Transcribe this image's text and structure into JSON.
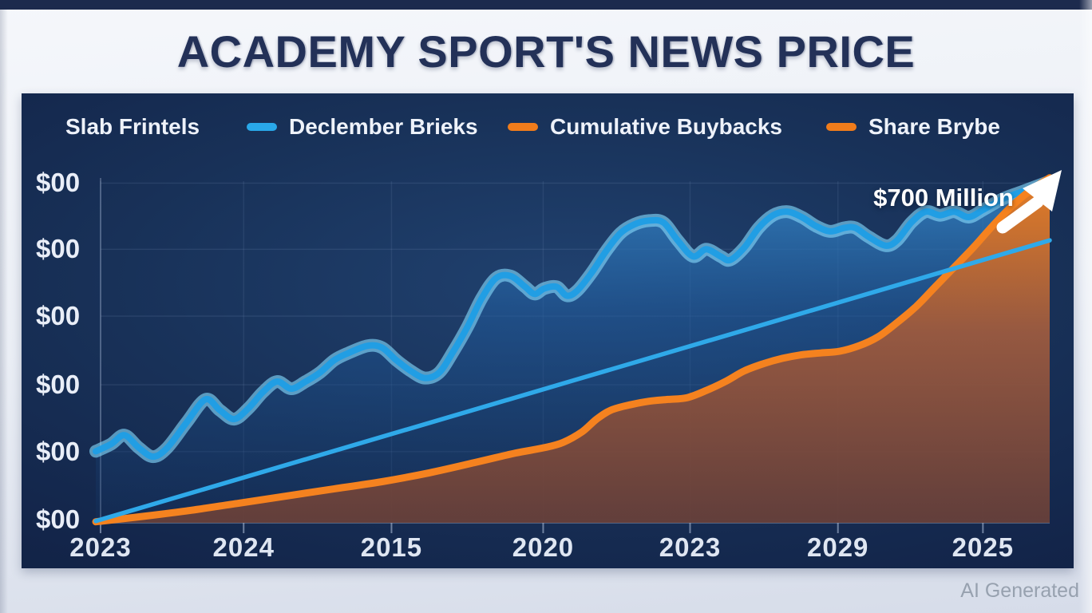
{
  "header": {
    "title": "ACADEMY SPORT'S NEWS PRICE"
  },
  "legend": {
    "items": [
      {
        "label": "Slab Frintels",
        "swatch": null
      },
      {
        "label": "Declember Brieks",
        "swatch": "#29a8e9"
      },
      {
        "label": "Cumulative Buybacks",
        "swatch": "#f07c1b"
      },
      {
        "label": "Share Brybe",
        "swatch": "#f07c1b"
      }
    ]
  },
  "annotation": {
    "text": "$700 Million"
  },
  "watermark": "AI Generated",
  "chart_data": {
    "type": "area",
    "title": "ACADEMY SPORT'S NEWS PRICE",
    "xlabel": "",
    "ylabel": "",
    "grid": true,
    "legend_position": "top",
    "xlim_pct": [
      0,
      100
    ],
    "ylim_pct": [
      0,
      100
    ],
    "x_ticks": [
      {
        "pos": 0.5,
        "label": "2023"
      },
      {
        "pos": 15.5,
        "label": "2024"
      },
      {
        "pos": 31.0,
        "label": "2015"
      },
      {
        "pos": 46.9,
        "label": "2020"
      },
      {
        "pos": 62.3,
        "label": "2023"
      },
      {
        "pos": 77.8,
        "label": "2029"
      },
      {
        "pos": 93.0,
        "label": "2025"
      }
    ],
    "y_ticks": [
      {
        "pos": 95.0,
        "label": "$00"
      },
      {
        "pos": 76.5,
        "label": "$00"
      },
      {
        "pos": 57.8,
        "label": "$00"
      },
      {
        "pos": 38.6,
        "label": "$00"
      },
      {
        "pos": 19.9,
        "label": "$00"
      },
      {
        "pos": 1.0,
        "label": "$00"
      }
    ],
    "annotation": {
      "text": "$700 Million",
      "x": 78,
      "y": 91
    },
    "series": [
      {
        "name": "Declember Brieks",
        "color": "#219ee4",
        "halo": "#7fd2f6",
        "width": 8,
        "fill": true,
        "points": [
          [
            0,
            20
          ],
          [
            1.6,
            22
          ],
          [
            3,
            24.5
          ],
          [
            4.5,
            21
          ],
          [
            6,
            18.5
          ],
          [
            7.5,
            21
          ],
          [
            9.5,
            28
          ],
          [
            11.5,
            34.5
          ],
          [
            13,
            31.5
          ],
          [
            14.5,
            29
          ],
          [
            16,
            32
          ],
          [
            17.5,
            36.5
          ],
          [
            19,
            39.5
          ],
          [
            20.5,
            37.5
          ],
          [
            22,
            39.5
          ],
          [
            23.5,
            42
          ],
          [
            25,
            45.5
          ],
          [
            26.5,
            47.5
          ],
          [
            28.5,
            49.5
          ],
          [
            30,
            49
          ],
          [
            31.5,
            45.5
          ],
          [
            33,
            42.5
          ],
          [
            34.5,
            40.5
          ],
          [
            36,
            42
          ],
          [
            37.5,
            48
          ],
          [
            39,
            55
          ],
          [
            40.5,
            63
          ],
          [
            42,
            68.5
          ],
          [
            43.5,
            69
          ],
          [
            45,
            66
          ],
          [
            46,
            64
          ],
          [
            47,
            65.5
          ],
          [
            48.3,
            66
          ],
          [
            49.4,
            63.5
          ],
          [
            50.5,
            65
          ],
          [
            52,
            70
          ],
          [
            53.5,
            76
          ],
          [
            55,
            81
          ],
          [
            56.5,
            83.5
          ],
          [
            58,
            84.5
          ],
          [
            59.5,
            84
          ],
          [
            61,
            79
          ],
          [
            62.6,
            74.5
          ],
          [
            64,
            76.5
          ],
          [
            65.5,
            74.5
          ],
          [
            66.5,
            73.5
          ],
          [
            68,
            77
          ],
          [
            69.5,
            82.5
          ],
          [
            71,
            86
          ],
          [
            72.5,
            87
          ],
          [
            74,
            85.5
          ],
          [
            75.5,
            83
          ],
          [
            77,
            81.5
          ],
          [
            78.5,
            82.5
          ],
          [
            79.6,
            82.5
          ],
          [
            81,
            80
          ],
          [
            82.8,
            77.5
          ],
          [
            84,
            79
          ],
          [
            85.5,
            84
          ],
          [
            87,
            87
          ],
          [
            88.5,
            86
          ],
          [
            90,
            87
          ],
          [
            91.5,
            85.5
          ],
          [
            93,
            87.5
          ],
          [
            95,
            90.5
          ],
          [
            97,
            92.5
          ],
          [
            98.5,
            94
          ],
          [
            100,
            95.5
          ]
        ]
      },
      {
        "name": "Cumulative Buybacks",
        "color": "#f5821f",
        "halo": null,
        "width": 9,
        "fill": true,
        "points": [
          [
            0,
            0.3
          ],
          [
            5,
            1.8
          ],
          [
            10,
            3.5
          ],
          [
            15,
            5.5
          ],
          [
            20,
            7.5
          ],
          [
            25,
            9.5
          ],
          [
            30,
            11.5
          ],
          [
            35,
            14
          ],
          [
            40,
            17
          ],
          [
            44,
            19.5
          ],
          [
            47,
            21
          ],
          [
            49,
            22.5
          ],
          [
            51,
            25.5
          ],
          [
            52.5,
            29
          ],
          [
            54,
            31.5
          ],
          [
            56,
            33
          ],
          [
            58,
            34
          ],
          [
            60,
            34.5
          ],
          [
            62,
            35
          ],
          [
            64,
            37
          ],
          [
            66,
            39.5
          ],
          [
            68,
            42.5
          ],
          [
            70,
            44.5
          ],
          [
            72,
            46
          ],
          [
            74,
            47
          ],
          [
            76,
            47.5
          ],
          [
            78,
            48
          ],
          [
            80,
            49.5
          ],
          [
            82,
            52
          ],
          [
            84,
            56
          ],
          [
            86,
            60.5
          ],
          [
            88,
            66
          ],
          [
            90,
            71.5
          ],
          [
            92,
            77
          ],
          [
            94,
            83
          ],
          [
            96,
            88.5
          ],
          [
            98,
            93
          ],
          [
            100,
            96.5
          ]
        ]
      },
      {
        "name": "Share Brybe",
        "color": "#2fa9e9",
        "halo": null,
        "width": 5.5,
        "fill": false,
        "points": [
          [
            0,
            0.5
          ],
          [
            100,
            79
          ]
        ]
      }
    ]
  }
}
